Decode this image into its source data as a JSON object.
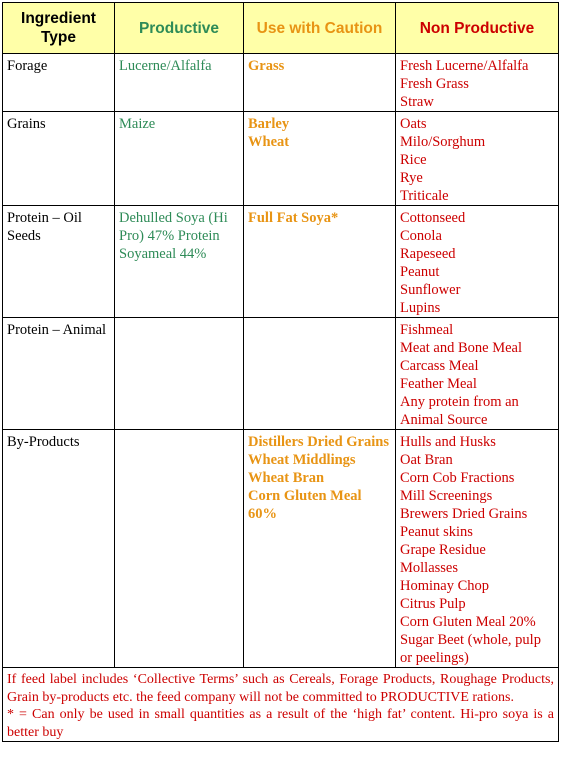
{
  "headers": {
    "type": "Ingredient Type",
    "productive": "Productive",
    "caution": "Use with Caution",
    "non_productive": "Non Productive"
  },
  "rows": [
    {
      "type": "Forage",
      "productive": [
        "Lucerne/Alfalfa"
      ],
      "caution": [
        "Grass"
      ],
      "non_productive": [
        "Fresh Lucerne/Alfalfa",
        "Fresh Grass",
        "Straw"
      ]
    },
    {
      "type": "Grains",
      "productive": [
        "Maize"
      ],
      "caution": [
        "Barley",
        "Wheat"
      ],
      "non_productive": [
        "Oats",
        "Milo/Sorghum",
        "Rice",
        "Rye",
        "Triticale"
      ]
    },
    {
      "type": "Protein – Oil Seeds",
      "productive": [
        "Dehulled Soya (Hi Pro) 47% Protein",
        "Soyameal 44%"
      ],
      "caution": [
        "Full Fat Soya*"
      ],
      "non_productive": [
        "Cottonseed",
        "Conola",
        "Rapeseed",
        "Peanut",
        "Sunflower",
        "Lupins"
      ]
    },
    {
      "type": "Protein – Animal",
      "productive": [],
      "caution": [],
      "non_productive": [
        "Fishmeal",
        "Meat and Bone Meal",
        "Carcass Meal",
        "Feather Meal",
        "Any protein from an Animal Source"
      ]
    },
    {
      "type": "By-Products",
      "productive": [],
      "caution": [
        "Distillers Dried Grains",
        "Wheat Middlings",
        "Wheat Bran",
        "Corn Gluten Meal 60%"
      ],
      "non_productive": [
        "Hulls and Husks",
        "Oat Bran",
        "Corn Cob Fractions",
        "Mill Screenings",
        "Brewers Dried Grains",
        "Peanut skins",
        "Grape Residue",
        "Mollasses",
        "Hominay Chop",
        "Citrus Pulp",
        "Corn Gluten Meal 20%",
        "Sugar Beet (whole, pulp or peelings)"
      ]
    }
  ],
  "note": {
    "line1": "If feed label includes ‘Collective Terms’ such as Cereals, Forage Products, Roughage Products, Grain by-products etc. the feed company will not be committed to PRODUCTIVE rations.",
    "line2": "* = Can only be used in small quantities as a result of the ‘high fat’ content.  Hi-pro soya is a better buy"
  },
  "colors": {
    "header_bg": "#ffffa8",
    "productive": "#2e8b57",
    "caution": "#e89414",
    "non_productive": "#cc0000"
  }
}
